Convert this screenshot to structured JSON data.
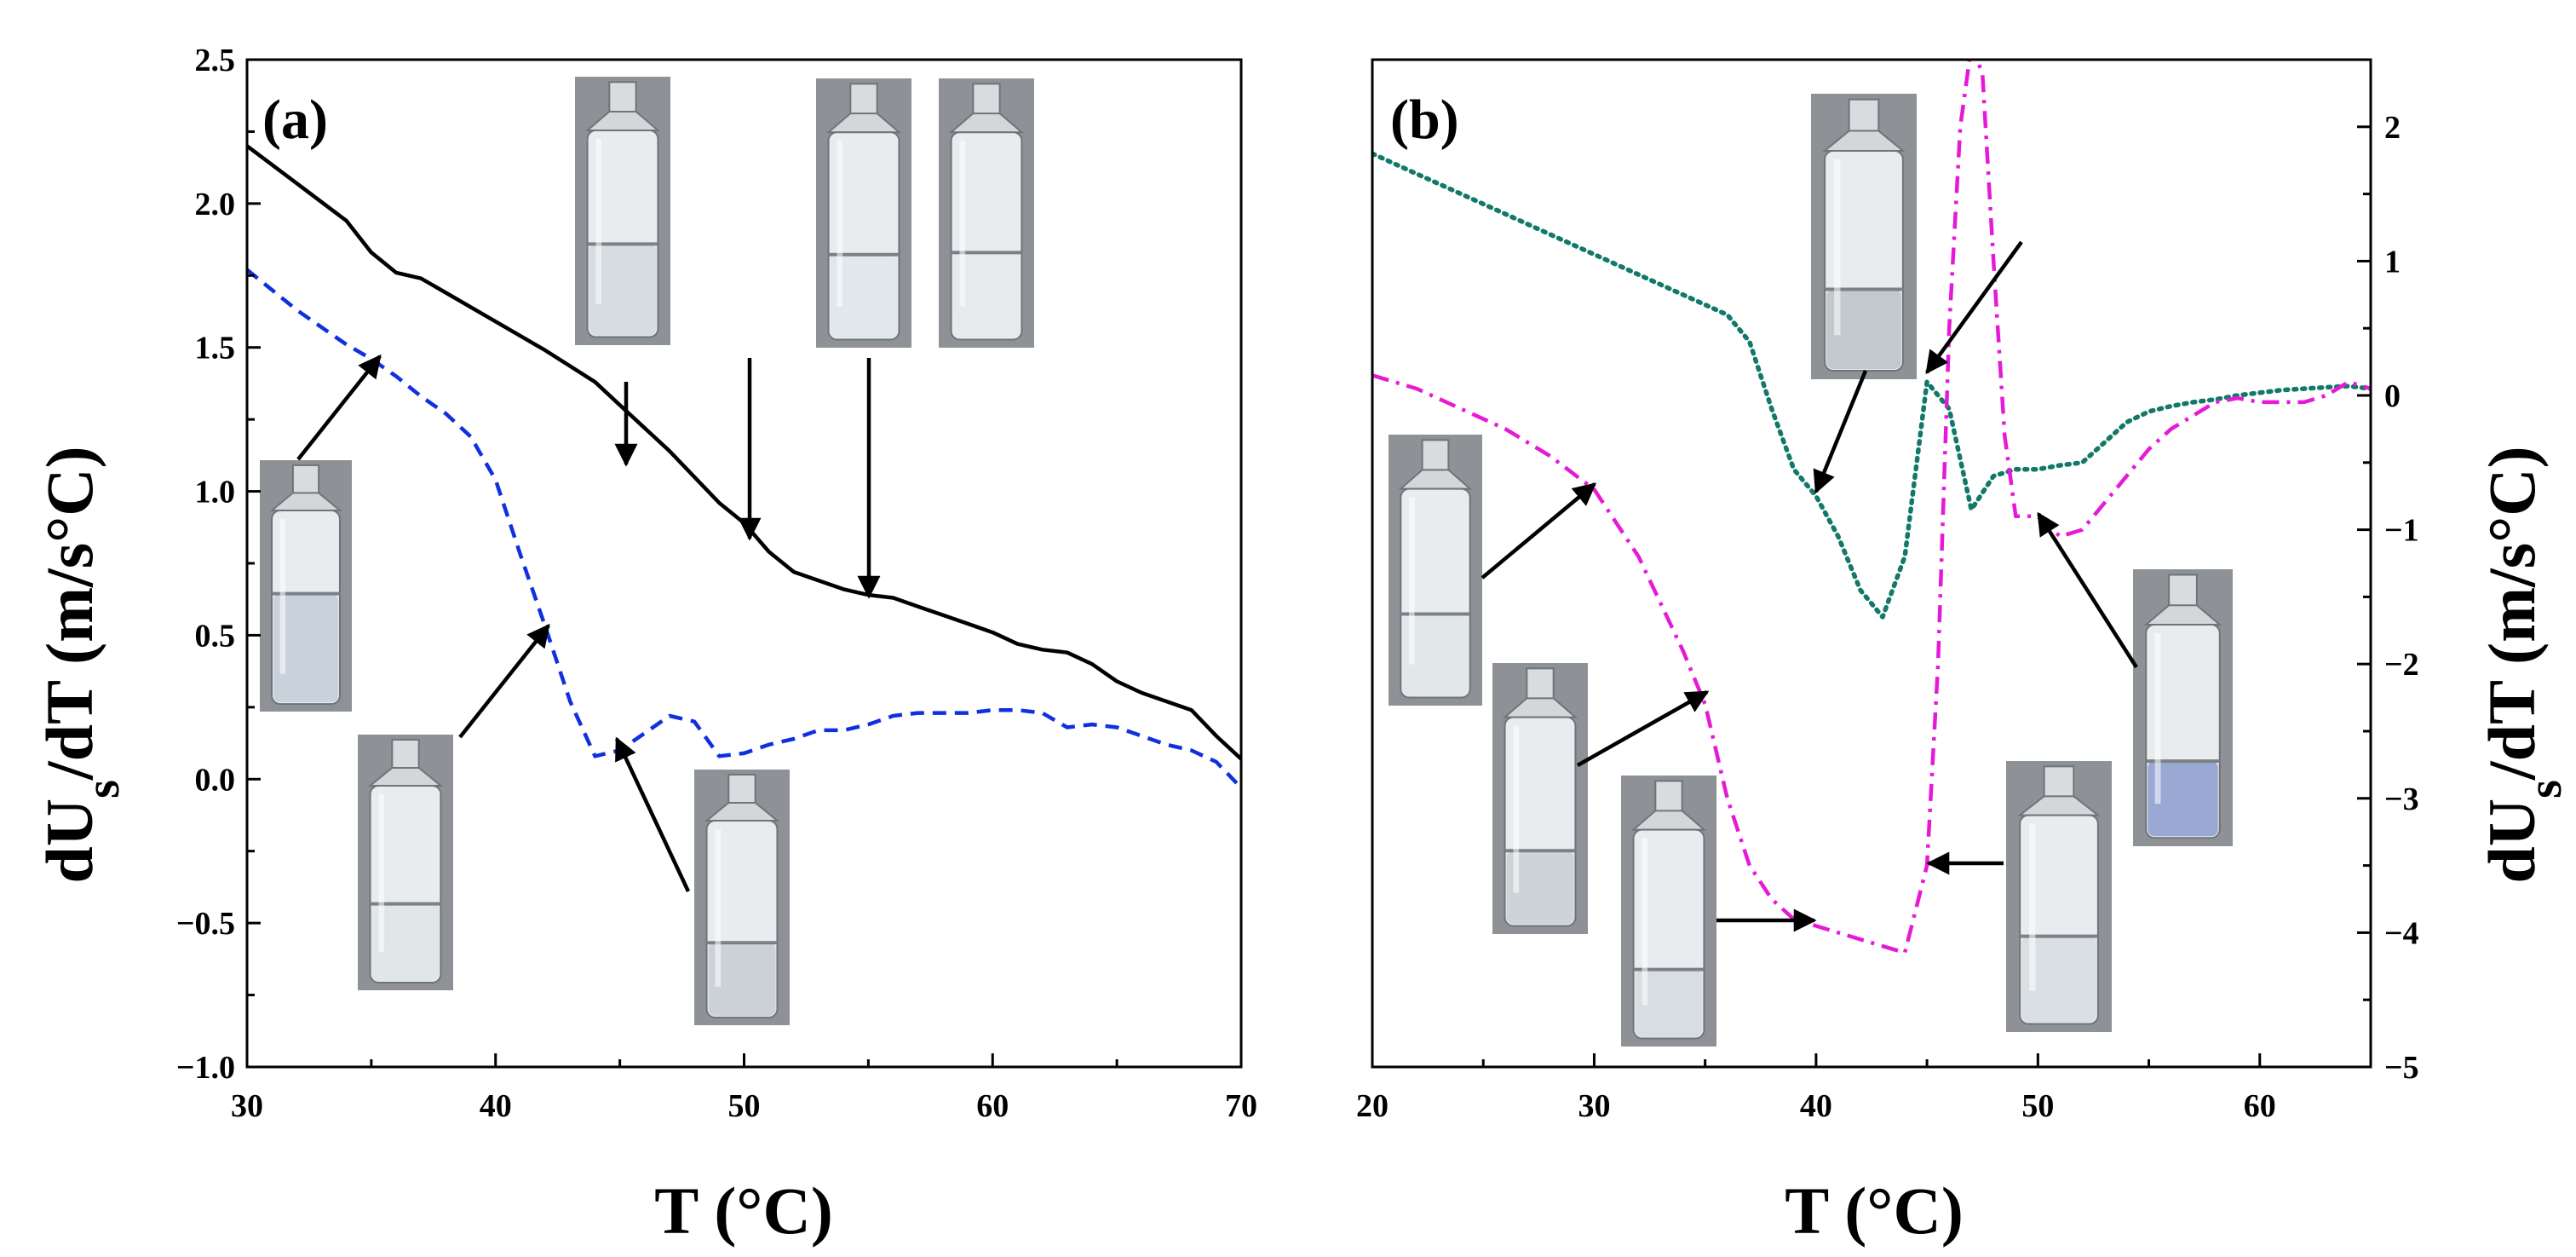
{
  "chart_data": [
    {
      "type": "line",
      "panel_label": "(a)",
      "xlabel": "T (°C)",
      "ylabel_main": "dU",
      "ylabel_sub": "s",
      "ylabel_rest": "/dT (m/s°C)",
      "xlim": [
        30,
        70
      ],
      "ylim": [
        -1.0,
        2.5
      ],
      "xticks": [
        30,
        40,
        50,
        60,
        70
      ],
      "xtick_labels": [
        "30",
        "40",
        "50",
        "60",
        "70"
      ],
      "yticks": [
        -1.0,
        -0.5,
        0.0,
        0.5,
        1.0,
        1.5,
        2.0,
        2.5
      ],
      "ytick_labels": [
        "−1.0",
        "−0.5",
        "0.0",
        "0.5",
        "1.0",
        "1.5",
        "2.0",
        "2.5"
      ],
      "grid": false,
      "series": [
        {
          "style": "solid",
          "color": "#000000",
          "x": [
            30,
            32,
            34,
            35,
            36,
            37,
            38,
            40,
            42,
            44,
            45,
            46,
            47,
            48,
            49,
            50,
            51,
            52,
            53,
            54,
            55,
            56,
            57,
            58,
            59,
            60,
            61,
            62,
            63,
            64,
            65,
            66,
            67,
            68,
            69,
            70
          ],
          "y": [
            2.2,
            2.07,
            1.94,
            1.83,
            1.76,
            1.74,
            1.69,
            1.59,
            1.49,
            1.38,
            1.3,
            1.22,
            1.14,
            1.05,
            0.96,
            0.89,
            0.79,
            0.72,
            0.69,
            0.66,
            0.64,
            0.63,
            0.6,
            0.57,
            0.54,
            0.51,
            0.47,
            0.45,
            0.44,
            0.4,
            0.34,
            0.3,
            0.27,
            0.24,
            0.15,
            0.07
          ]
        },
        {
          "style": "dashed",
          "color": "#1030e0",
          "x": [
            30,
            32,
            34,
            35,
            36,
            37,
            38,
            39,
            40,
            41,
            42,
            43,
            44,
            45,
            46,
            47,
            48,
            49,
            50,
            51,
            52,
            53,
            54,
            55,
            56,
            57,
            58,
            59,
            60,
            61,
            62,
            63,
            64,
            65,
            66,
            67,
            68,
            69,
            70
          ],
          "y": [
            1.77,
            1.63,
            1.51,
            1.46,
            1.4,
            1.33,
            1.27,
            1.19,
            1.04,
            0.78,
            0.53,
            0.27,
            0.08,
            0.1,
            0.16,
            0.22,
            0.2,
            0.08,
            0.09,
            0.12,
            0.14,
            0.17,
            0.17,
            0.19,
            0.22,
            0.23,
            0.23,
            0.23,
            0.24,
            0.24,
            0.23,
            0.18,
            0.19,
            0.18,
            0.15,
            0.12,
            0.1,
            0.06,
            -0.03
          ]
        }
      ],
      "insets": [
        {
          "fill": 0.57,
          "liquid": "#c9d1dc"
        },
        {
          "fill": 0.4,
          "liquid": "#dfe7e7"
        },
        {
          "fill": 0.45,
          "liquid": "#d6dcdf"
        },
        {
          "fill": 0.38,
          "liquid": "#ccd1d8"
        },
        {
          "fill": 0.41,
          "liquid": "#e1e7ea"
        },
        {
          "fill": 0.42,
          "liquid": "#e6eaec"
        }
      ]
    },
    {
      "type": "line",
      "panel_label": "(b)",
      "xlabel": "T (°C)",
      "ylabel_main": "dU",
      "ylabel_sub": "s",
      "ylabel_rest": "/dT (m/s°C)",
      "xlim": [
        20,
        65
      ],
      "ylim": [
        -5,
        2.5
      ],
      "xticks": [
        20,
        30,
        40,
        50,
        60
      ],
      "xtick_labels": [
        "20",
        "30",
        "40",
        "50",
        "60"
      ],
      "yticks": [
        -5,
        -4,
        -3,
        -2,
        -1,
        0,
        1,
        2
      ],
      "ytick_labels": [
        "−5",
        "−4",
        "−3",
        "−2",
        "−1",
        "0",
        "1",
        "2"
      ],
      "grid": false,
      "series": [
        {
          "style": "dotted",
          "color": "#12786a",
          "x": [
            20,
            22,
            24,
            26,
            28,
            30,
            32,
            34,
            36,
            37,
            38,
            39,
            40,
            41,
            42,
            43,
            44,
            45,
            46,
            47,
            48,
            49,
            50,
            51,
            52,
            53,
            54,
            55,
            56,
            57,
            58,
            59,
            60,
            61,
            62,
            63,
            64,
            65
          ],
          "y": [
            1.8,
            1.65,
            1.5,
            1.35,
            1.2,
            1.05,
            0.9,
            0.75,
            0.6,
            0.4,
            -0.1,
            -0.55,
            -0.75,
            -1.05,
            -1.45,
            -1.65,
            -1.2,
            0.1,
            -0.1,
            -0.85,
            -0.6,
            -0.55,
            -0.55,
            -0.52,
            -0.5,
            -0.35,
            -0.2,
            -0.12,
            -0.08,
            -0.05,
            -0.03,
            0.0,
            0.02,
            0.04,
            0.05,
            0.06,
            0.07,
            0.05
          ]
        },
        {
          "style": "dashdot",
          "color": "#e61ad6",
          "x": [
            20,
            22,
            24,
            26,
            28,
            30,
            32,
            33,
            34,
            35,
            36,
            37,
            38,
            39,
            40,
            41,
            42,
            43,
            44,
            45,
            45.5,
            46,
            46.5,
            47,
            47.5,
            48,
            48.5,
            49,
            50,
            51,
            52,
            53,
            54,
            55,
            56,
            57,
            58,
            59,
            60,
            61,
            62,
            63,
            64,
            65
          ],
          "y": [
            0.15,
            0.05,
            -0.1,
            -0.25,
            -0.45,
            -0.7,
            -1.2,
            -1.55,
            -1.9,
            -2.3,
            -3.0,
            -3.5,
            -3.75,
            -3.9,
            -3.95,
            -4.0,
            -4.05,
            -4.1,
            -4.15,
            -3.5,
            -2.0,
            0.5,
            2.0,
            2.6,
            2.4,
            1.0,
            -0.3,
            -0.9,
            -0.9,
            -1.05,
            -1.0,
            -0.8,
            -0.6,
            -0.4,
            -0.25,
            -0.15,
            -0.05,
            -0.02,
            -0.05,
            -0.05,
            -0.05,
            0.0,
            0.1,
            0.05
          ]
        }
      ],
      "insets": [
        {
          "fill": 0.4,
          "liquid": "#e2e8ea"
        },
        {
          "fill": 0.36,
          "liquid": "#cdd4d8"
        },
        {
          "fill": 0.33,
          "liquid": "#d8dde1"
        },
        {
          "fill": 0.42,
          "liquid": "#d9dfe3"
        },
        {
          "fill": 0.36,
          "liquid": "#9aa8d4"
        },
        {
          "fill": 0.37,
          "liquid": "#c2c8cc"
        }
      ]
    }
  ]
}
